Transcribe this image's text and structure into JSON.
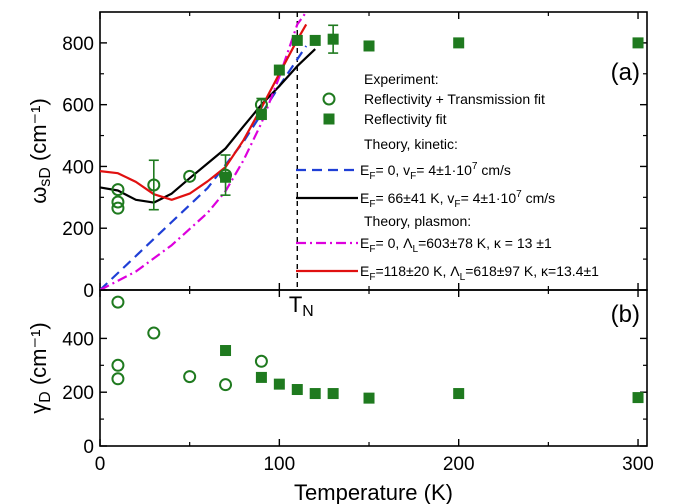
{
  "chart_data": [
    {
      "panel": "(a)",
      "type": "scatter",
      "ylabel": "ω_sD (cm⁻¹)",
      "xlim": [
        0,
        305
      ],
      "ylim": [
        0,
        900
      ],
      "xticks": [
        0,
        100,
        200,
        300
      ],
      "yticks": [
        0,
        200,
        400,
        600,
        800
      ],
      "vline": {
        "x": 110,
        "label": "T_N",
        "style": "dashed"
      },
      "legend": {
        "placement": "right",
        "headers": [
          "Experiment:",
          "Theory, kinetic:",
          "Theory, plasmon:"
        ],
        "entries": [
          {
            "id": "rt",
            "label": "Reflectivity + Transmission fit"
          },
          {
            "id": "rf",
            "label": "Reflectivity fit"
          },
          {
            "id": "k1",
            "label": "E_F= 0,         v_F= 4±1·10^7 cm/s"
          },
          {
            "id": "k2",
            "label": "E_F= 66±41 K, v_F= 4±1·10^7 cm/s"
          },
          {
            "id": "p1",
            "label": "E_F= 0,  Λ_L=603±78 K, κ = 13 ±1"
          },
          {
            "id": "p2",
            "label": "E_F=118±20 K, Λ_L=618±97 K, κ=13.4±1"
          }
        ]
      },
      "series": [
        {
          "name": "Reflectivity + Transmission fit",
          "marker": "open-circle",
          "color": "#1f7a1f",
          "points": [
            [
              10,
              325
            ],
            [
              10,
              285
            ],
            [
              10,
              265
            ],
            [
              30,
              340
            ],
            [
              50,
              368
            ],
            [
              70,
              372
            ],
            [
              90,
              600
            ]
          ],
          "errorbars": [
            [
              30,
              340,
              80
            ],
            [
              70,
              372,
              65
            ],
            [
              90,
              600,
              20
            ]
          ]
        },
        {
          "name": "Reflectivity fit",
          "marker": "filled-square",
          "color": "#1f7a1f",
          "points": [
            [
              70,
              365
            ],
            [
              90,
              568
            ],
            [
              100,
              712
            ],
            [
              110,
              808
            ],
            [
              120,
              808
            ],
            [
              130,
              812
            ],
            [
              150,
              790
            ],
            [
              200,
              800
            ],
            [
              300,
              800
            ]
          ],
          "errorbars": [
            [
              130,
              812,
              45
            ]
          ]
        },
        {
          "name": "E_F= 0,         v_F= 4±1·10^7 cm/s",
          "line": "dashed",
          "color": "#1f3fd6",
          "points": [
            [
              0,
              0
            ],
            [
              20,
              110
            ],
            [
              40,
              220
            ],
            [
              60,
              330
            ],
            [
              80,
              480
            ],
            [
              100,
              660
            ],
            [
              115,
              790
            ]
          ]
        },
        {
          "name": "E_F= 66±41 K, v_F= 4±1·10^7 cm/s",
          "line": "solid",
          "color": "#000000",
          "points": [
            [
              0,
              332
            ],
            [
              10,
              322
            ],
            [
              20,
              292
            ],
            [
              30,
              283
            ],
            [
              40,
              312
            ],
            [
              50,
              362
            ],
            [
              60,
              410
            ],
            [
              70,
              458
            ],
            [
              80,
              530
            ],
            [
              90,
              600
            ],
            [
              100,
              660
            ],
            [
              110,
              725
            ],
            [
              120,
              780
            ]
          ]
        },
        {
          "name": "E_F= 0,  Λ_L=603±78 K, κ = 13 ±1",
          "line": "dashdot",
          "color": "#dd00dd",
          "points": [
            [
              0,
              0
            ],
            [
              20,
              60
            ],
            [
              40,
              145
            ],
            [
              60,
              250
            ],
            [
              70,
              320
            ],
            [
              80,
              420
            ],
            [
              90,
              540
            ],
            [
              100,
              690
            ],
            [
              110,
              860
            ],
            [
              115,
              900
            ]
          ]
        },
        {
          "name": "E_F=118±20 K, Λ_L=618±97 K, κ=13.4±1",
          "line": "solid",
          "color": "#e01010",
          "points": [
            [
              0,
              385
            ],
            [
              10,
              378
            ],
            [
              20,
              350
            ],
            [
              30,
              310
            ],
            [
              40,
              292
            ],
            [
              50,
              312
            ],
            [
              60,
              352
            ],
            [
              70,
              398
            ],
            [
              80,
              485
            ],
            [
              90,
              590
            ],
            [
              100,
              700
            ],
            [
              110,
              810
            ],
            [
              115,
              860
            ]
          ]
        }
      ]
    },
    {
      "panel": "(b)",
      "type": "scatter",
      "xlabel": "Temperature (K)",
      "ylabel": "γ_D (cm⁻¹)",
      "xlim": [
        0,
        305
      ],
      "ylim": [
        0,
        580
      ],
      "xticks": [
        0,
        100,
        200,
        300
      ],
      "yticks": [
        0,
        200,
        400
      ],
      "series": [
        {
          "name": "Reflectivity + Transmission fit",
          "marker": "open-circle",
          "color": "#1f7a1f",
          "points": [
            [
              10,
              535
            ],
            [
              10,
              300
            ],
            [
              10,
              250
            ],
            [
              30,
              420
            ],
            [
              50,
              258
            ],
            [
              70,
              228
            ],
            [
              90,
              315
            ]
          ]
        },
        {
          "name": "Reflectivity fit",
          "marker": "filled-square",
          "color": "#1f7a1f",
          "points": [
            [
              70,
              355
            ],
            [
              90,
              255
            ],
            [
              100,
              230
            ],
            [
              110,
              210
            ],
            [
              120,
              195
            ],
            [
              130,
              195
            ],
            [
              150,
              178
            ],
            [
              200,
              195
            ],
            [
              300,
              180
            ]
          ]
        }
      ]
    }
  ]
}
